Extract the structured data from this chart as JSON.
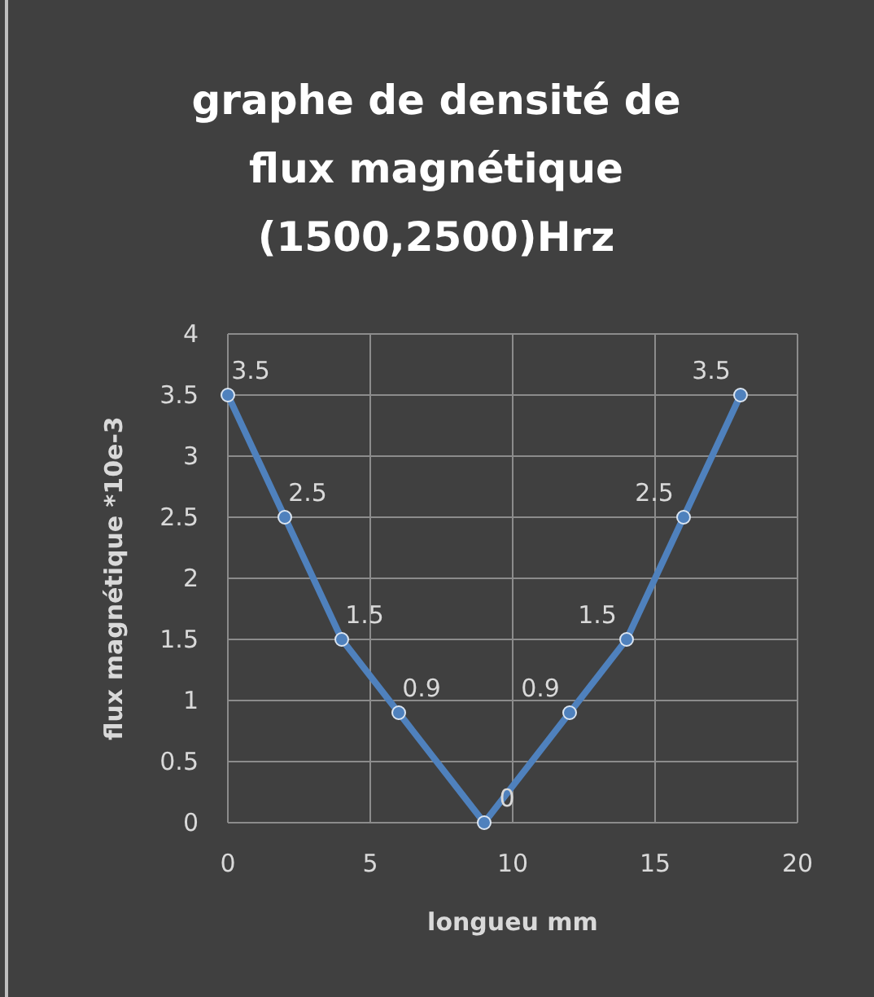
{
  "chart_data": {
    "type": "line",
    "title": "graphe de densité de flux magnétique (1500,2500)Hrz",
    "xlabel": "longueu mm",
    "ylabel": "flux magnétique *10e-3",
    "x": [
      0,
      2,
      4,
      6,
      9,
      12,
      14,
      16,
      18
    ],
    "series": [
      {
        "color": "#4f81bd",
        "values": [
          3.5,
          2.5,
          1.5,
          0.9,
          0,
          0.9,
          1.5,
          2.5,
          3.5
        ]
      }
    ],
    "xlim": [
      0,
      20
    ],
    "xticks": [
      0,
      5,
      10,
      15,
      20
    ],
    "ylim": [
      0,
      4
    ],
    "yticks": [
      0,
      0.5,
      1,
      1.5,
      2,
      2.5,
      3,
      3.5,
      4
    ],
    "grid": true,
    "marker": "circle",
    "line_style": "solid",
    "data_labels": true
  }
}
